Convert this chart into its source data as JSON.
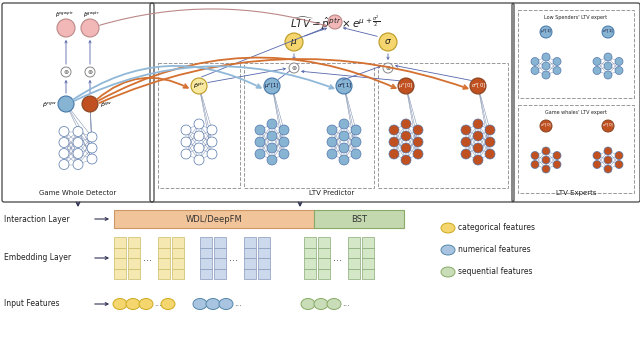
{
  "fig_width": 6.4,
  "fig_height": 3.38,
  "dpi": 100,
  "bg_color": "#ffffff",
  "colors": {
    "pink_light": "#f2b8b8",
    "yellow": "#f5d56e",
    "yellow_light": "#f8e8a0",
    "blue_light": "#a8c4e0",
    "orange_dark": "#c05020",
    "white": "#ffffff",
    "blue_node": "#88b4d4",
    "green_light": "#c8ddb8",
    "peach": "#f2c89a",
    "gray_border": "#888888",
    "arrow_blue": "#90b8d8",
    "arrow_orange": "#d47030",
    "arrow_dark": "#444466",
    "text_dark": "#222222",
    "embed_yellow": "#f5e8b0",
    "embed_blue": "#ccd8ec",
    "embed_green": "#d4e8c8",
    "interact_peach": "#f2c49a",
    "interact_green": "#c4d8b0"
  },
  "title_formula": "$\\widehat{LTV} = \\hat{p}^{ptr} \\times e^{\\mu + \\frac{\\sigma^2}{2}}$",
  "labels": {
    "gwd": "Game Whole Detector",
    "ltv_pred": "LTV Predictor",
    "ltv_exp": "LTV Experts",
    "low_spend": "Low Spenders' LTV expert",
    "game_whale": "Game whales' LTV expert",
    "interaction": "Interaction Layer",
    "embedding": "Embedding Layer",
    "input": "Input Features",
    "wdl": "WDL/DeepFM",
    "bst": "BST",
    "cat_feat": "categorical features",
    "num_feat": "numerical features",
    "seq_feat": "sequential features"
  }
}
